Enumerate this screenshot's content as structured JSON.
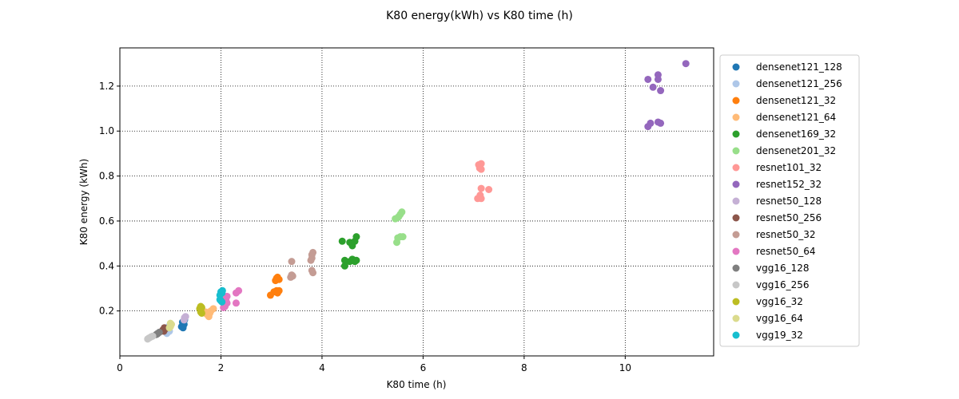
{
  "chart_data": {
    "type": "scatter",
    "title": "K80 energy(kWh) vs K80 time (h)",
    "xlabel": "K80 time (h)",
    "ylabel": "K80 energy (kWh)",
    "xlim": [
      0,
      11.75
    ],
    "ylim": [
      0,
      1.37
    ],
    "xticks": [
      0,
      2,
      4,
      6,
      8,
      10
    ],
    "yticks": [
      0.2,
      0.4,
      0.6,
      0.8,
      1.0,
      1.2
    ],
    "grid": true,
    "legend_position": "right-outside",
    "series": [
      {
        "name": "densenet121_128",
        "color": "#1f77b4",
        "points": [
          [
            1.22,
            0.13
          ],
          [
            1.24,
            0.15
          ],
          [
            1.27,
            0.14
          ],
          [
            1.25,
            0.125
          ],
          [
            1.28,
            0.16
          ]
        ]
      },
      {
        "name": "densenet121_256",
        "color": "#aec7e8",
        "points": [
          [
            0.93,
            0.1
          ],
          [
            0.95,
            0.12
          ],
          [
            0.98,
            0.11
          ],
          [
            0.96,
            0.13
          ]
        ]
      },
      {
        "name": "densenet121_32",
        "color": "#ff7f0e",
        "points": [
          [
            3.1,
            0.345
          ],
          [
            3.12,
            0.35
          ],
          [
            3.08,
            0.335
          ],
          [
            3.15,
            0.34
          ],
          [
            3.1,
            0.29
          ],
          [
            3.12,
            0.28
          ],
          [
            3.05,
            0.285
          ],
          [
            2.98,
            0.27
          ],
          [
            3.15,
            0.29
          ]
        ]
      },
      {
        "name": "densenet121_64",
        "color": "#ffbb78",
        "points": [
          [
            1.75,
            0.18
          ],
          [
            1.78,
            0.19
          ],
          [
            1.72,
            0.185
          ],
          [
            1.8,
            0.2
          ],
          [
            1.85,
            0.21
          ],
          [
            1.7,
            0.195
          ],
          [
            1.76,
            0.175
          ]
        ]
      },
      {
        "name": "densenet169_32",
        "color": "#2ca02c",
        "points": [
          [
            4.4,
            0.51
          ],
          [
            4.55,
            0.505
          ],
          [
            4.6,
            0.49
          ],
          [
            4.65,
            0.51
          ],
          [
            4.68,
            0.53
          ],
          [
            4.45,
            0.425
          ],
          [
            4.55,
            0.42
          ],
          [
            4.6,
            0.43
          ],
          [
            4.65,
            0.42
          ],
          [
            4.68,
            0.425
          ],
          [
            4.45,
            0.4
          ]
        ]
      },
      {
        "name": "densenet201_32",
        "color": "#98df8a",
        "points": [
          [
            5.45,
            0.61
          ],
          [
            5.5,
            0.615
          ],
          [
            5.52,
            0.62
          ],
          [
            5.55,
            0.63
          ],
          [
            5.58,
            0.64
          ],
          [
            5.48,
            0.505
          ],
          [
            5.5,
            0.525
          ],
          [
            5.55,
            0.53
          ],
          [
            5.6,
            0.53
          ]
        ]
      },
      {
        "name": "resnet101_32",
        "color": "#ff9896",
        "points": [
          [
            7.1,
            0.85
          ],
          [
            7.15,
            0.855
          ],
          [
            7.12,
            0.835
          ],
          [
            7.15,
            0.83
          ],
          [
            7.15,
            0.745
          ],
          [
            7.3,
            0.74
          ],
          [
            7.08,
            0.7
          ],
          [
            7.15,
            0.7
          ],
          [
            7.13,
            0.715
          ]
        ]
      },
      {
        "name": "resnet152_32",
        "color": "#9467bd",
        "points": [
          [
            11.2,
            1.3
          ],
          [
            10.65,
            1.25
          ],
          [
            10.65,
            1.23
          ],
          [
            10.45,
            1.23
          ],
          [
            10.55,
            1.195
          ],
          [
            10.7,
            1.18
          ],
          [
            10.5,
            1.035
          ],
          [
            10.45,
            1.02
          ],
          [
            10.65,
            1.04
          ],
          [
            10.7,
            1.035
          ]
        ]
      },
      {
        "name": "resnet50_128",
        "color": "#c5b0d5",
        "points": [
          [
            1.28,
            0.17
          ],
          [
            1.3,
            0.175
          ],
          [
            1.27,
            0.16
          ]
        ]
      },
      {
        "name": "resnet50_256",
        "color": "#8c564b",
        "points": [
          [
            0.85,
            0.115
          ],
          [
            0.88,
            0.125
          ],
          [
            0.9,
            0.12
          ],
          [
            0.87,
            0.11
          ]
        ]
      },
      {
        "name": "resnet50_32",
        "color": "#c49c94",
        "points": [
          [
            3.4,
            0.42
          ],
          [
            3.8,
            0.45
          ],
          [
            3.82,
            0.46
          ],
          [
            3.8,
            0.435
          ],
          [
            3.78,
            0.425
          ],
          [
            3.8,
            0.38
          ],
          [
            3.82,
            0.37
          ],
          [
            3.4,
            0.36
          ],
          [
            3.42,
            0.355
          ],
          [
            3.38,
            0.35
          ]
        ]
      },
      {
        "name": "resnet50_64",
        "color": "#e377c2",
        "points": [
          [
            2.35,
            0.29
          ],
          [
            2.3,
            0.28
          ],
          [
            2.12,
            0.265
          ],
          [
            2.1,
            0.255
          ],
          [
            2.1,
            0.245
          ],
          [
            2.12,
            0.235
          ],
          [
            2.08,
            0.22
          ],
          [
            2.3,
            0.235
          ],
          [
            2.05,
            0.215
          ]
        ]
      },
      {
        "name": "vgg16_128",
        "color": "#7f7f7f",
        "points": [
          [
            0.72,
            0.095
          ],
          [
            0.75,
            0.1
          ],
          [
            0.78,
            0.105
          ],
          [
            0.74,
            0.098
          ]
        ]
      },
      {
        "name": "vgg16_256",
        "color": "#c7c7c7",
        "points": [
          [
            0.55,
            0.075
          ],
          [
            0.58,
            0.08
          ],
          [
            0.62,
            0.085
          ],
          [
            0.65,
            0.088
          ]
        ]
      },
      {
        "name": "vgg16_32",
        "color": "#bcbd22",
        "points": [
          [
            1.6,
            0.22
          ],
          [
            1.62,
            0.215
          ],
          [
            1.58,
            0.21
          ],
          [
            1.6,
            0.195
          ],
          [
            1.62,
            0.19
          ]
        ]
      },
      {
        "name": "vgg16_64",
        "color": "#dbdb8d",
        "points": [
          [
            1.0,
            0.13
          ],
          [
            1.02,
            0.14
          ],
          [
            0.98,
            0.125
          ],
          [
            1.0,
            0.145
          ]
        ]
      },
      {
        "name": "vgg19_32",
        "color": "#17becf",
        "points": [
          [
            2.0,
            0.285
          ],
          [
            2.02,
            0.28
          ],
          [
            1.98,
            0.27
          ],
          [
            2.0,
            0.245
          ],
          [
            2.02,
            0.24
          ],
          [
            1.98,
            0.25
          ],
          [
            2.03,
            0.29
          ]
        ]
      }
    ]
  }
}
